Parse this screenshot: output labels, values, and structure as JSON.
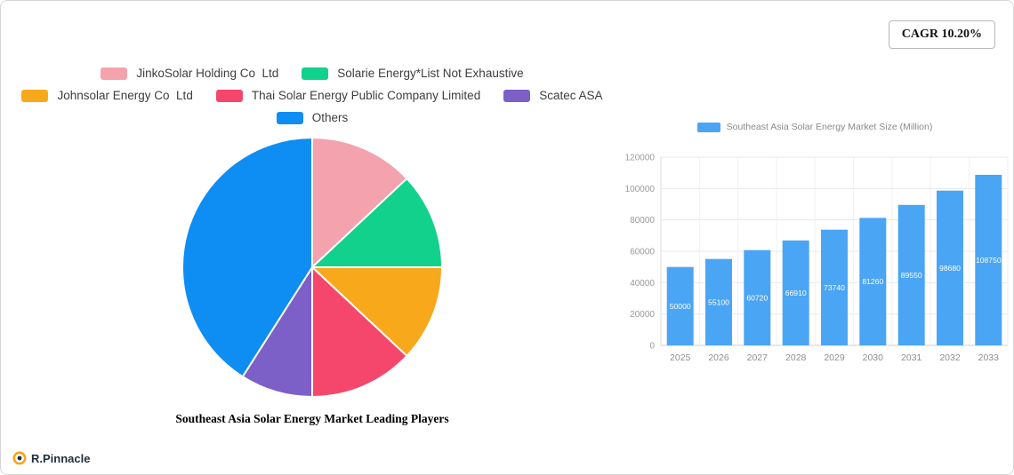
{
  "header": {
    "cagr_badge": "CAGR 10.20%"
  },
  "branding": {
    "logo_text": "R.Pinnacle"
  },
  "chart_data": [
    {
      "type": "pie",
      "title": "Southeast Asia Solar Energy Market Leading Players",
      "legend_position": "top",
      "labels": [
        "JinkoSolar Holding Co  Ltd",
        "Solarie Energy*List Not Exhaustive",
        "Johnsolar Energy Co  Ltd",
        "Thai Solar Energy Public Company Limited",
        "Scatec ASA",
        "Others"
      ],
      "values": [
        13,
        12,
        12,
        13,
        9,
        41
      ],
      "colors": [
        "#F4A3AE",
        "#12D18D",
        "#F8A91B",
        "#F5476B",
        "#7D5FC8",
        "#0E8DF2"
      ]
    },
    {
      "type": "bar",
      "legend_label": "Southeast Asia Solar Energy Market Size (Million)",
      "categories": [
        "2025",
        "2026",
        "2027",
        "2028",
        "2029",
        "2030",
        "2031",
        "2032",
        "2033"
      ],
      "values": [
        50000,
        55100,
        60720,
        66910,
        73740,
        81260,
        89550,
        98680,
        108750
      ],
      "bar_color": "#4BA5F5",
      "ylim": [
        0,
        120000
      ],
      "ytick_step": 20000,
      "grid": true,
      "legend_position": "top"
    }
  ]
}
